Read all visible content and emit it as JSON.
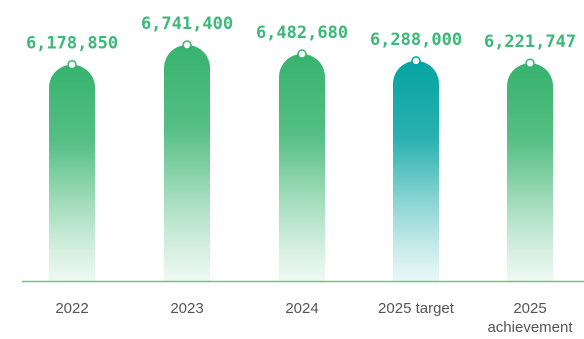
{
  "chart_data": {
    "type": "bar",
    "categories": [
      [
        "2022"
      ],
      [
        "2023"
      ],
      [
        "2024"
      ],
      [
        "2025 target"
      ],
      [
        "2025",
        "achievement"
      ]
    ],
    "values": [
      6178850,
      6741400,
      6482680,
      6288000,
      6221747
    ],
    "value_labels": [
      "6,178,850",
      "6,741,400",
      "6,482,680",
      "6,288,000",
      "6,221,747"
    ],
    "title": "",
    "xlabel": "",
    "ylabel": "",
    "ylim": [
      0,
      6741400
    ],
    "grid": false,
    "legend": "none",
    "colors": {
      "bar_green": "#37b36e",
      "bar_target": "#04a3a1",
      "label_green": "#3cb878",
      "axis_line": "#6cc48d",
      "marker_fill": "#ffffff"
    }
  }
}
